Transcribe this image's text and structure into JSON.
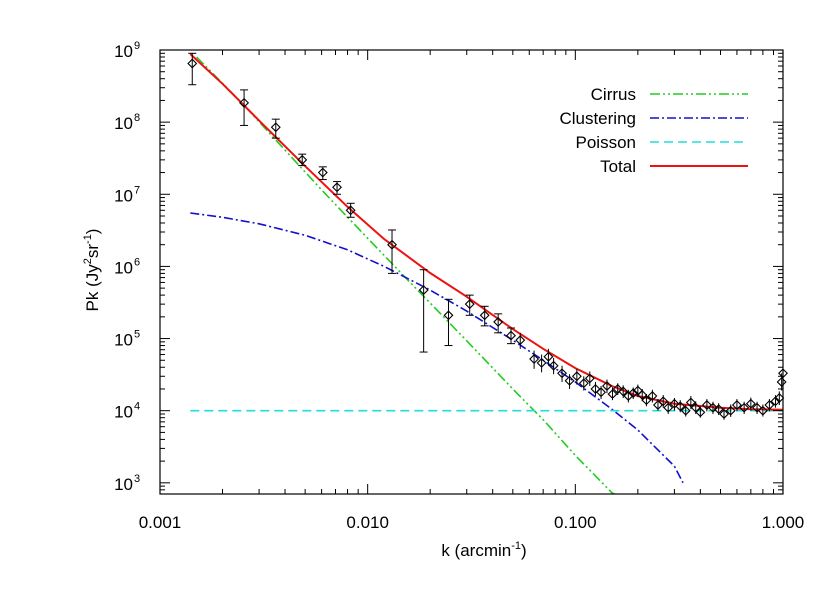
{
  "chart_data": {
    "type": "line",
    "title": "",
    "xlabel_main": "k (arcmin",
    "xlabel_sup": "-1",
    "xlabel_close": ")",
    "ylabel_parts": [
      "Pk (Jy",
      "2",
      "sr",
      "-1",
      ")"
    ],
    "xscale": "log",
    "yscale": "log",
    "xlim": [
      0.001,
      1.0
    ],
    "ylim": [
      700,
      1000000000
    ],
    "grid": false,
    "legend_position": "top-right",
    "x_ticks": [
      {
        "value": 0.001,
        "label": "0.001"
      },
      {
        "value": 0.01,
        "label": "0.010"
      },
      {
        "value": 0.1,
        "label": "0.100"
      },
      {
        "value": 1.0,
        "label": "1.000"
      }
    ],
    "y_ticks": [
      {
        "value": 1000,
        "base": "10",
        "exp": "3"
      },
      {
        "value": 10000,
        "base": "10",
        "exp": "4"
      },
      {
        "value": 100000,
        "base": "10",
        "exp": "5"
      },
      {
        "value": 1000000,
        "base": "10",
        "exp": "6"
      },
      {
        "value": 10000000,
        "base": "10",
        "exp": "7"
      },
      {
        "value": 100000000,
        "base": "10",
        "exp": "8"
      },
      {
        "value": 1000000000,
        "base": "10",
        "exp": "9"
      }
    ],
    "series": [
      {
        "name": "Cirrus",
        "color": "#22cc22",
        "style": "dash-dot-dot",
        "x": [
          0.0015,
          0.0025,
          0.004,
          0.006,
          0.01,
          0.015,
          0.02,
          0.03,
          0.05,
          0.07,
          0.1,
          0.15,
          0.16
        ],
        "y": [
          800000000,
          180000000,
          41000000,
          11500000,
          2450000,
          730000,
          310000,
          93000,
          20000,
          7500,
          2400,
          730,
          660
        ]
      },
      {
        "name": "Clustering",
        "color": "#1111cc",
        "style": "dash-dot",
        "x": [
          0.0014,
          0.002,
          0.003,
          0.005,
          0.008,
          0.012,
          0.02,
          0.03,
          0.05,
          0.07,
          0.1,
          0.15,
          0.2,
          0.3,
          0.33
        ],
        "y": [
          5500000,
          4800000,
          3900000,
          2700000,
          1700000,
          1000000,
          470000,
          240000,
          95000,
          50000,
          25000,
          10500,
          5400,
          1700,
          1000
        ]
      },
      {
        "name": "Poisson",
        "color": "#22dddd",
        "style": "dashed",
        "x": [
          0.0014,
          1.0
        ],
        "y": [
          10000,
          10000
        ]
      },
      {
        "name": "Total",
        "color": "#ee1111",
        "style": "solid",
        "x": [
          0.0014,
          0.002,
          0.003,
          0.005,
          0.008,
          0.012,
          0.02,
          0.03,
          0.05,
          0.07,
          0.1,
          0.15,
          0.2,
          0.3,
          0.5,
          0.7,
          1.0
        ],
        "y": [
          880000000,
          340000000,
          105000000,
          24500000,
          6700000,
          2400000,
          810000,
          380000,
          135000,
          72000,
          39000,
          22000,
          16000,
          12500,
          11000,
          10500,
          10300
        ]
      }
    ],
    "points": {
      "name": "data",
      "x": [
        0.00143,
        0.00254,
        0.00361,
        0.00484,
        0.00608,
        0.00712,
        0.00828,
        0.0131,
        0.0186,
        0.0245,
        0.031,
        0.0366,
        0.0425,
        0.049,
        0.0543,
        0.0633,
        0.0688,
        0.0742,
        0.0786,
        0.0863,
        0.0938,
        0.1017,
        0.1098,
        0.1174,
        0.125,
        0.133,
        0.142,
        0.151,
        0.16,
        0.17,
        0.18,
        0.19,
        0.2,
        0.21,
        0.22,
        0.235,
        0.25,
        0.265,
        0.28,
        0.3,
        0.32,
        0.34,
        0.36,
        0.38,
        0.4,
        0.43,
        0.46,
        0.49,
        0.52,
        0.56,
        0.6,
        0.65,
        0.7,
        0.75,
        0.8,
        0.86,
        0.92,
        0.96,
        0.985,
        1.0
      ],
      "y": [
        650000000,
        185000000,
        85000000,
        30000000,
        20000000,
        12500000,
        6000000,
        2000000,
        470000,
        210000,
        300000,
        210000,
        170000,
        110000,
        95000,
        52000,
        46000,
        56000,
        42000,
        33000,
        26000,
        30000,
        24000,
        28000,
        20000,
        18000,
        22000,
        17000,
        20000,
        18500,
        16000,
        17500,
        19000,
        16500,
        14000,
        16000,
        12000,
        13500,
        11000,
        12500,
        11500,
        10000,
        13000,
        11000,
        9500,
        12000,
        11000,
        10500,
        9000,
        10000,
        12000,
        11000,
        12500,
        11000,
        10000,
        12000,
        13500,
        15000,
        25000,
        33000
      ],
      "err_lo": [
        330000000,
        90000000,
        60000000,
        25000000,
        16000000,
        10000000,
        4800000,
        800000,
        65000,
        80000,
        210000,
        150000,
        120000,
        85000,
        72000,
        38000,
        34000,
        42000,
        32000,
        25000,
        20000,
        23000,
        19000,
        22000,
        16000,
        14500,
        17500,
        14000,
        16500,
        15000,
        13000,
        14500,
        15500,
        13500,
        11500,
        13000,
        10000,
        11000,
        9000,
        10000,
        9500,
        8300,
        10500,
        9000,
        8000,
        9800,
        9000,
        8700,
        7500,
        8200,
        9800,
        9000,
        10000,
        9000,
        8300,
        9800,
        11000,
        12000,
        19000,
        25000
      ],
      "err_hi": [
        900000000,
        280000000,
        110000000,
        36000000,
        24000000,
        15000000,
        7500000,
        3200000,
        900000,
        350000,
        400000,
        280000,
        220000,
        140000,
        120000,
        68000,
        60000,
        72000,
        54000,
        42000,
        32000,
        38000,
        30000,
        35000,
        25000,
        22000,
        27000,
        21000,
        24000,
        22500,
        19500,
        21000,
        23000,
        20000,
        17000,
        19500,
        14500,
        16500,
        13500,
        15000,
        14000,
        12000,
        16000,
        13500,
        11500,
        14500,
        13300,
        12700,
        11000,
        12200,
        14500,
        13300,
        15200,
        13300,
        12200,
        14500,
        16400,
        18500,
        33000,
        42000
      ]
    }
  }
}
